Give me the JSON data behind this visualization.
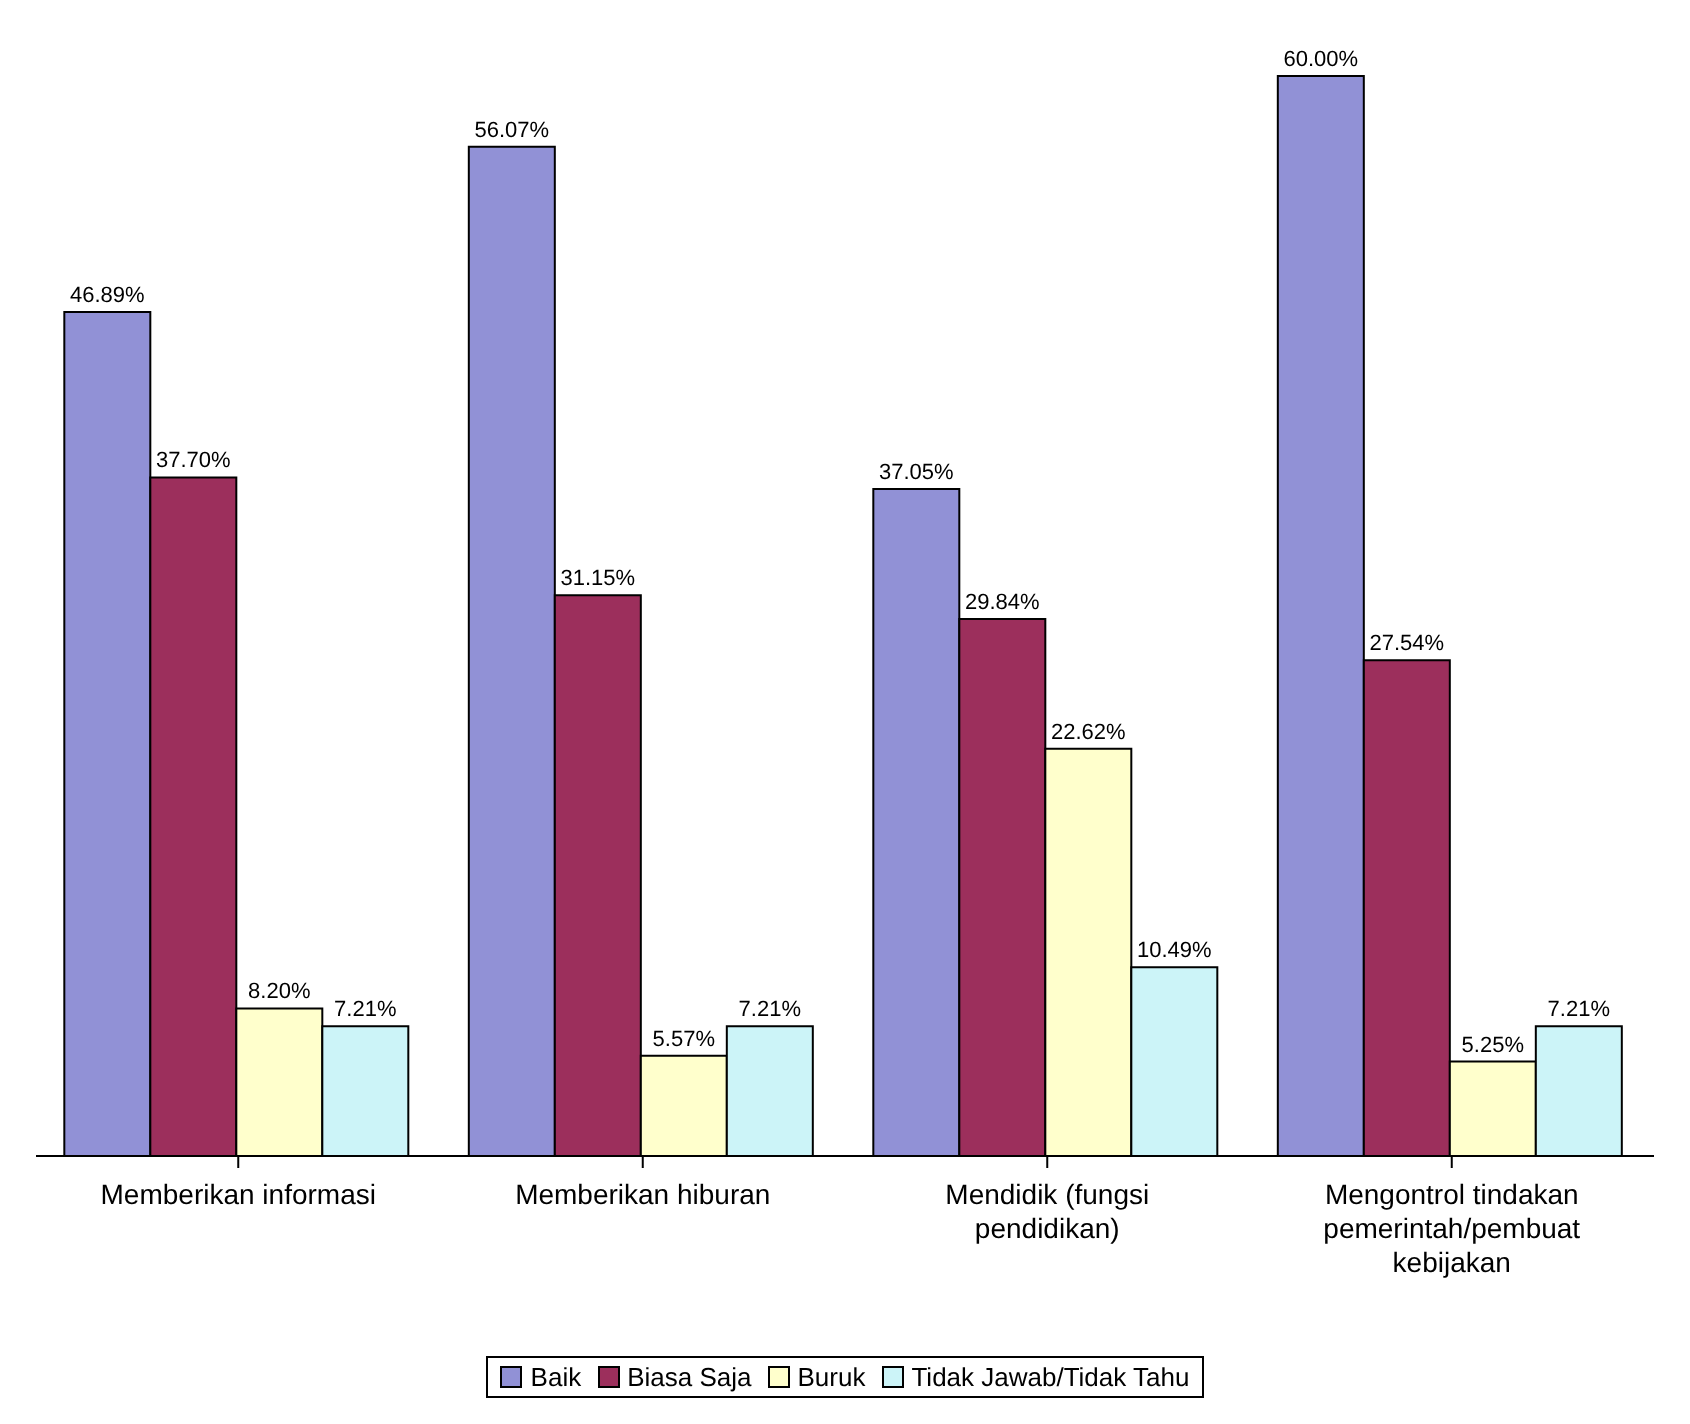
{
  "chart_data": {
    "type": "bar",
    "categories": [
      "Memberikan informasi",
      "Memberikan hiburan",
      "Mendidik (fungsi pendidikan)",
      "Mengontrol tindakan pemerintah/pembuat kebijakan"
    ],
    "series": [
      {
        "name": "Baik",
        "color": "#9191d6",
        "values": [
          46.89,
          56.07,
          37.05,
          60.0
        ],
        "value_labels": [
          "46.89%",
          "56.07%",
          "37.05%",
          "60.00%"
        ]
      },
      {
        "name": "Biasa Saja",
        "color": "#9c2f5c",
        "values": [
          37.7,
          31.15,
          29.84,
          27.54
        ],
        "value_labels": [
          "37.70%",
          "31.15%",
          "29.84%",
          "27.54%"
        ]
      },
      {
        "name": "Buruk",
        "color": "#ffffcc",
        "values": [
          8.2,
          5.57,
          22.62,
          5.25
        ],
        "value_labels": [
          "8.20%",
          "5.57%",
          "22.62%",
          "5.25%"
        ]
      },
      {
        "name": "Tidak Jawab/Tidak Tahu",
        "color": "#ccf4f8",
        "values": [
          7.21,
          7.21,
          10.49,
          7.21
        ],
        "value_labels": [
          "7.21%",
          "7.21%",
          "10.49%",
          "7.21%"
        ]
      }
    ],
    "legend": "bottom",
    "grid": false
  }
}
